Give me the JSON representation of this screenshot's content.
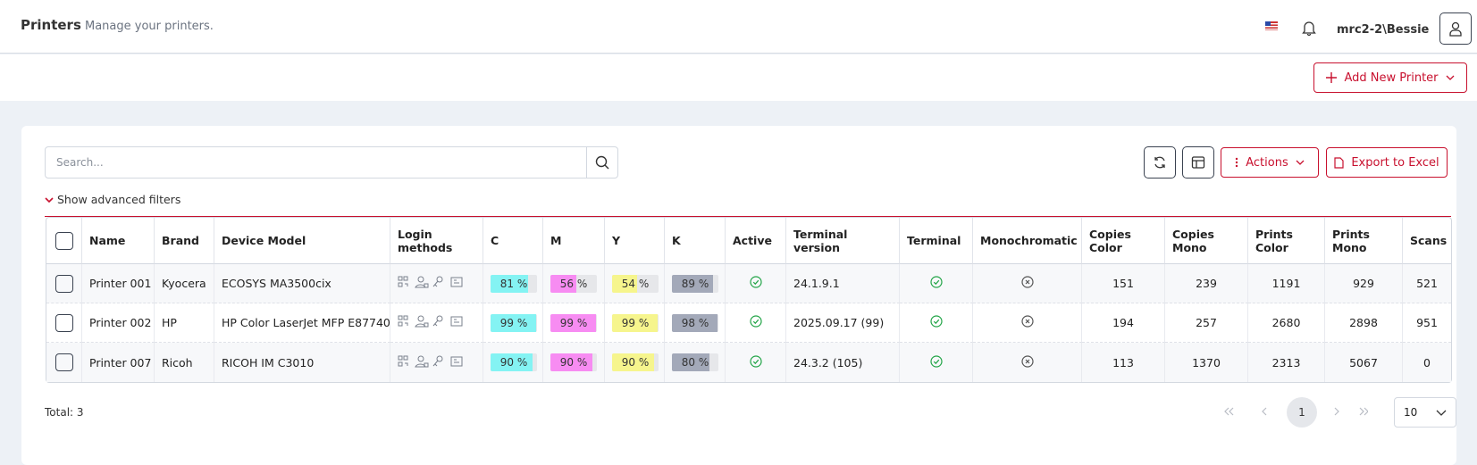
{
  "header": {
    "title": "Printers",
    "subtitle": "Manage your printers.",
    "user": "mrc2-2\\Bessie"
  },
  "toolbar": {
    "add_button": "Add New Printer",
    "search_placeholder": "Search...",
    "actions_button": "Actions",
    "export_button": "Export to Excel",
    "advanced_filters": "Show advanced filters"
  },
  "table": {
    "columns": [
      "Name",
      "Brand",
      "Device Model",
      "Login methods",
      "C",
      "M",
      "Y",
      "K",
      "Active",
      "Terminal version",
      "Terminal",
      "Monochromatic",
      "Copies Color",
      "Copies Mono",
      "Prints Color",
      "Prints Mono",
      "Scans"
    ],
    "rows": [
      {
        "name": "Printer 001",
        "brand": "Kyocera",
        "model": "ECOSYS MA3500cix",
        "c": {
          "value": 81,
          "label": "81 %"
        },
        "m": {
          "value": 56,
          "label": "56 %"
        },
        "y": {
          "value": 54,
          "label": "54 %"
        },
        "k": {
          "value": 89,
          "label": "89 %"
        },
        "active": true,
        "terminal_version": "24.1.9.1",
        "terminal": true,
        "monochromatic": false,
        "copies_color": 151,
        "copies_mono": 239,
        "prints_color": 1191,
        "prints_mono": 929,
        "scans": 521
      },
      {
        "name": "Printer 002",
        "brand": "HP",
        "model": "HP Color LaserJet MFP E87740",
        "c": {
          "value": 99,
          "label": "99 %"
        },
        "m": {
          "value": 99,
          "label": "99 %"
        },
        "y": {
          "value": 99,
          "label": "99 %"
        },
        "k": {
          "value": 98,
          "label": "98 %"
        },
        "active": true,
        "terminal_version": "2025.09.17 (99)",
        "terminal": true,
        "monochromatic": false,
        "copies_color": 194,
        "copies_mono": 257,
        "prints_color": 2680,
        "prints_mono": 2898,
        "scans": 951
      },
      {
        "name": "Printer 007",
        "brand": "Ricoh",
        "model": "RICOH IM C3010",
        "c": {
          "value": 90,
          "label": "90 %"
        },
        "m": {
          "value": 90,
          "label": "90 %"
        },
        "y": {
          "value": 90,
          "label": "90 %"
        },
        "k": {
          "value": 80,
          "label": "80 %"
        },
        "active": true,
        "terminal_version": "24.3.2 (105)",
        "terminal": true,
        "monochromatic": false,
        "copies_color": 113,
        "copies_mono": 1370,
        "prints_color": 2313,
        "prints_mono": 5067,
        "scans": 0
      }
    ],
    "toner_colors": {
      "c": "#84f3f3",
      "m": "#f78cf2",
      "y": "#f6f58d",
      "k": "#a3a9b9"
    }
  },
  "footer": {
    "total_label": "Total:",
    "total": 3,
    "page": 1,
    "page_size": 10
  }
}
